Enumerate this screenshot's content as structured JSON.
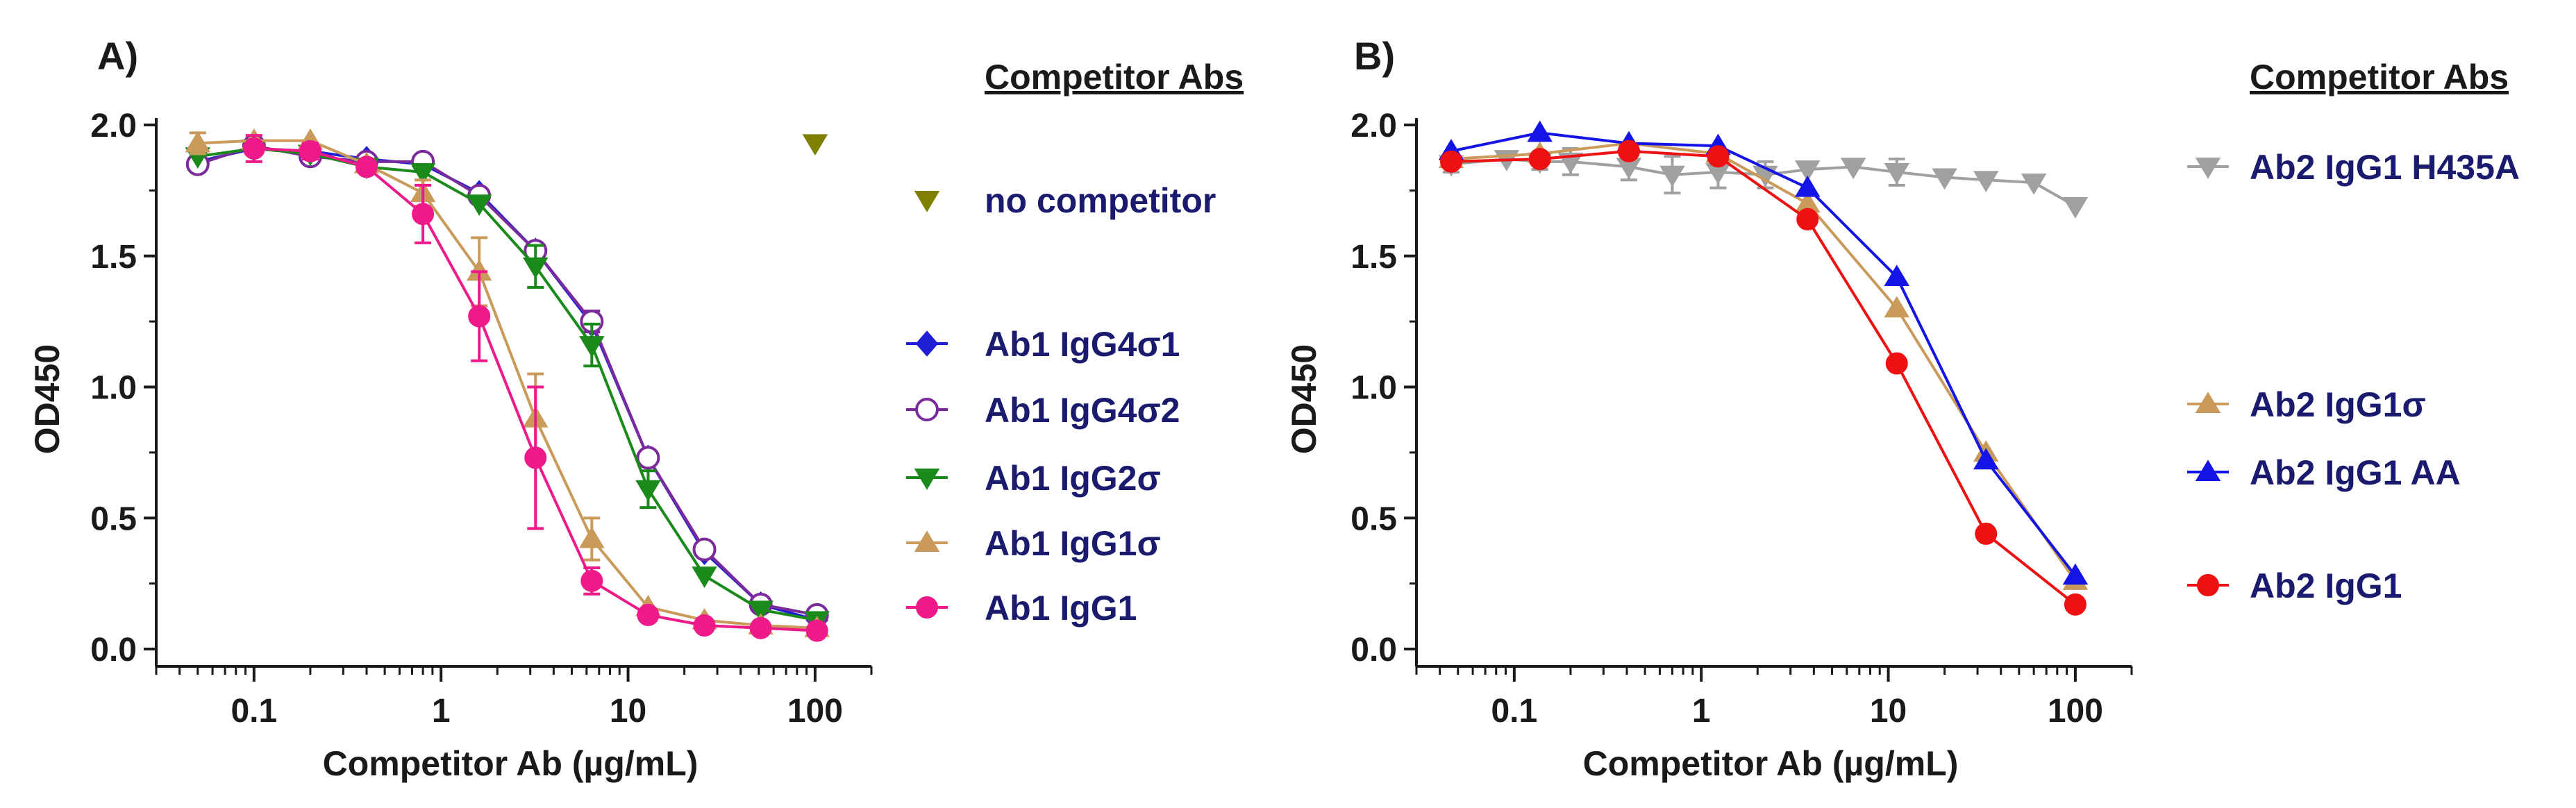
{
  "chart_data": [
    {
      "type": "line",
      "panel_label": "A)",
      "xlabel": "Competitor Ab (µg/mL)",
      "ylabel": "OD450",
      "xscale": "log",
      "xlim": [
        0.03,
        200
      ],
      "ylim": [
        0,
        2.0
      ],
      "xticks": [
        0.1,
        1,
        10,
        100
      ],
      "xtick_labels": [
        "0.1",
        "1",
        "10",
        "100"
      ],
      "yticks": [
        0,
        0.5,
        1.0,
        1.5,
        2.0
      ],
      "ytick_labels": [
        "0.0",
        "0.5",
        "1.0",
        "1.5",
        "2.0"
      ],
      "legend_title": "Competitor Abs",
      "series": [
        {
          "name": "no competitor",
          "color": "#7f7f00",
          "marker": "triangle-down",
          "filled": true,
          "connect": false,
          "x": [
            100
          ],
          "y": [
            1.93
          ],
          "err": [
            0
          ],
          "legend_pos": 0
        },
        {
          "name": "Ab1 IgG4σ1",
          "color": "#1f1fd6",
          "marker": "diamond",
          "filled": true,
          "connect": true,
          "x": [
            0.05,
            0.1,
            0.2,
            0.4,
            0.8,
            1.6,
            3.2,
            6.4,
            12.8,
            25.6,
            51.2,
            102.4
          ],
          "y": [
            1.86,
            1.91,
            1.9,
            1.87,
            1.85,
            1.74,
            1.52,
            1.24,
            0.73,
            0.37,
            0.17,
            0.11
          ],
          "err": [
            0,
            0,
            0,
            0,
            0,
            0,
            0,
            0,
            0,
            0,
            0,
            0
          ],
          "legend_pos": 1
        },
        {
          "name": "Ab1 IgG4σ2",
          "color": "#7a2a9a",
          "marker": "circle",
          "filled": false,
          "connect": true,
          "x": [
            0.05,
            0.1,
            0.2,
            0.4,
            0.8,
            1.6,
            3.2,
            6.4,
            12.8,
            25.6,
            51.2,
            102.4
          ],
          "y": [
            1.85,
            1.92,
            1.88,
            1.86,
            1.86,
            1.73,
            1.52,
            1.25,
            0.73,
            0.38,
            0.17,
            0.13
          ],
          "err": [
            0,
            0,
            0,
            0,
            0,
            0,
            0,
            0.04,
            0,
            0,
            0,
            0
          ],
          "legend_pos": 2
        },
        {
          "name": "Ab1 IgG2σ",
          "color": "#1a8a1a",
          "marker": "triangle-down",
          "filled": true,
          "connect": true,
          "x": [
            0.05,
            0.1,
            0.2,
            0.4,
            0.8,
            1.6,
            3.2,
            6.4,
            12.8,
            25.6,
            51.2,
            102.4
          ],
          "y": [
            1.88,
            1.91,
            1.89,
            1.84,
            1.82,
            1.7,
            1.46,
            1.16,
            0.61,
            0.28,
            0.15,
            0.11
          ],
          "err": [
            0,
            0,
            0,
            0,
            0,
            0,
            0.08,
            0.08,
            0.07,
            0,
            0,
            0
          ],
          "legend_pos": 3
        },
        {
          "name": "Ab1 IgG1σ",
          "color": "#c99a5a",
          "marker": "triangle-up",
          "filled": true,
          "connect": true,
          "x": [
            0.05,
            0.1,
            0.2,
            0.4,
            0.8,
            1.6,
            3.2,
            6.4,
            12.8,
            25.6,
            51.2,
            102.4
          ],
          "y": [
            1.93,
            1.94,
            1.94,
            1.85,
            1.74,
            1.44,
            0.88,
            0.42,
            0.16,
            0.11,
            0.09,
            0.08
          ],
          "err": [
            0.04,
            0,
            0,
            0,
            0.05,
            0.13,
            0.17,
            0.08,
            0,
            0,
            0,
            0
          ],
          "legend_pos": 4
        },
        {
          "name": "Ab1 IgG1",
          "color": "#ee1a8a",
          "marker": "circle",
          "filled": true,
          "connect": true,
          "x": [
            0.1,
            0.2,
            0.4,
            0.8,
            1.6,
            3.2,
            6.4,
            12.8,
            25.6,
            51.2,
            102.4
          ],
          "y": [
            1.91,
            1.9,
            1.84,
            1.66,
            1.27,
            0.73,
            0.26,
            0.13,
            0.09,
            0.08,
            0.07
          ],
          "err": [
            0.05,
            0.03,
            0,
            0.11,
            0.17,
            0.27,
            0.05,
            0,
            0,
            0,
            0
          ],
          "legend_pos": 5
        }
      ]
    },
    {
      "type": "line",
      "panel_label": "B)",
      "xlabel": "Competitor Ab (µg/mL)",
      "ylabel": "OD450",
      "xscale": "log",
      "xlim": [
        0.03,
        200
      ],
      "ylim": [
        0,
        2.0
      ],
      "xticks": [
        0.1,
        1,
        10,
        100
      ],
      "xtick_labels": [
        "0.1",
        "1",
        "10",
        "100"
      ],
      "yticks": [
        0,
        0.5,
        1.0,
        1.5,
        2.0
      ],
      "ytick_labels": [
        "0.0",
        "0.5",
        "1.0",
        "1.5",
        "2.0"
      ],
      "legend_title": "Competitor Abs",
      "series": [
        {
          "name": "Ab2 IgG1 H435A",
          "color": "#a0a0a0",
          "marker": "triangle-down",
          "filled": true,
          "connect": true,
          "x": [
            0.046,
            0.091,
            0.137,
            0.2,
            0.41,
            0.7,
            1.23,
            2.2,
            3.7,
            6.5,
            11.1,
            20,
            33.3,
            60,
            100
          ],
          "y": [
            1.85,
            1.87,
            1.86,
            1.86,
            1.84,
            1.81,
            1.82,
            1.81,
            1.83,
            1.84,
            1.82,
            1.8,
            1.79,
            1.78,
            1.69
          ],
          "err": [
            0.03,
            0,
            0.03,
            0.05,
            0.05,
            0.07,
            0.06,
            0.05,
            0,
            0,
            0.05,
            0,
            0,
            0,
            0
          ],
          "legend_pos": 0
        },
        {
          "name": "Ab2 IgG1σ",
          "color": "#c99a5a",
          "marker": "triangle-up",
          "filled": true,
          "connect": true,
          "x": [
            0.046,
            0.137,
            0.41,
            1.23,
            3.7,
            11.1,
            33.3,
            100
          ],
          "y": [
            1.87,
            1.89,
            1.93,
            1.89,
            1.7,
            1.3,
            0.75,
            0.26
          ],
          "err": [
            0,
            0,
            0,
            0,
            0,
            0,
            0,
            0
          ],
          "legend_pos": 1
        },
        {
          "name": "Ab2 IgG1 AA",
          "color": "#1414e6",
          "marker": "triangle-up",
          "filled": true,
          "connect": true,
          "x": [
            0.046,
            0.137,
            0.41,
            1.23,
            3.7,
            11.1,
            33.3,
            100
          ],
          "y": [
            1.9,
            1.97,
            1.93,
            1.92,
            1.76,
            1.42,
            0.72,
            0.28
          ],
          "err": [
            0,
            0,
            0,
            0,
            0,
            0,
            0,
            0
          ],
          "legend_pos": 2
        },
        {
          "name": "Ab2 IgG1",
          "color": "#ee1111",
          "marker": "circle",
          "filled": true,
          "connect": true,
          "x": [
            0.046,
            0.137,
            0.41,
            1.23,
            3.7,
            11.1,
            33.3,
            100
          ],
          "y": [
            1.86,
            1.87,
            1.9,
            1.88,
            1.64,
            1.09,
            0.44,
            0.17
          ],
          "err": [
            0,
            0,
            0,
            0,
            0,
            0,
            0,
            0
          ],
          "legend_pos": 3
        }
      ]
    }
  ]
}
